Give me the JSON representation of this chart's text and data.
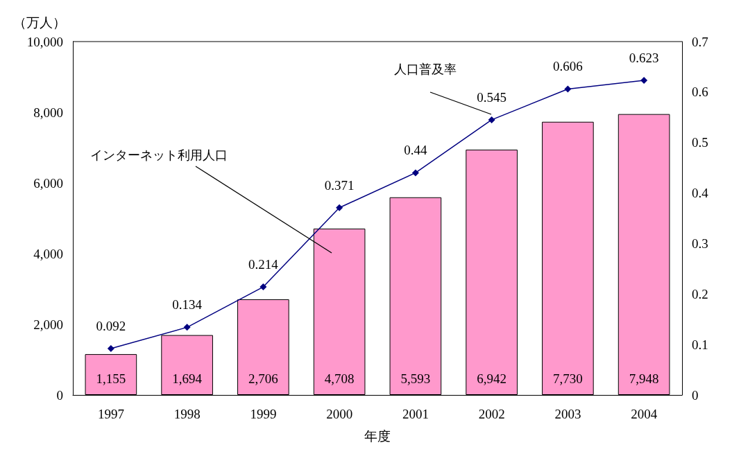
{
  "chart_data": {
    "type": "bar",
    "xlabel": "年度",
    "ylabel": "（万人）",
    "categories": [
      "1997",
      "1998",
      "1999",
      "2000",
      "2001",
      "2002",
      "2003",
      "2004"
    ],
    "series": [
      {
        "name": "インターネット利用人口",
        "color": "#ff99cc",
        "values": [
          1155,
          1694,
          2706,
          4708,
          5593,
          6942,
          7730,
          7948
        ],
        "value_labels": [
          "1,155",
          "1,694",
          "2,706",
          "4,708",
          "5,593",
          "6,942",
          "7,730",
          "7,948"
        ]
      },
      {
        "name": "人口普及率",
        "type": "line",
        "axis": "y2",
        "color": "#000080",
        "marker": "diamond",
        "values": [
          0.092,
          0.134,
          0.214,
          0.371,
          0.44,
          0.545,
          0.606,
          0.623
        ],
        "value_labels": [
          "0.092",
          "0.134",
          "0.214",
          "0.371",
          "0.44",
          "0.545",
          "0.606",
          "0.623"
        ]
      }
    ],
    "ylim": [
      0,
      10000
    ],
    "yticks": [
      0,
      {
        "value": 2000,
        "label": "2,000"
      },
      {
        "value": 4000,
        "label": "4,000"
      },
      {
        "value": 6000,
        "label": "6,000"
      },
      {
        "value": 8000,
        "label": "8,000"
      },
      {
        "value": 10000,
        "label": "10,000"
      }
    ],
    "y2lim": [
      0,
      0.7
    ],
    "y2ticks": [
      0,
      0.1,
      0.2,
      0.3,
      0.4,
      0.5,
      0.6,
      0.7
    ],
    "grid": false,
    "legend": false
  }
}
